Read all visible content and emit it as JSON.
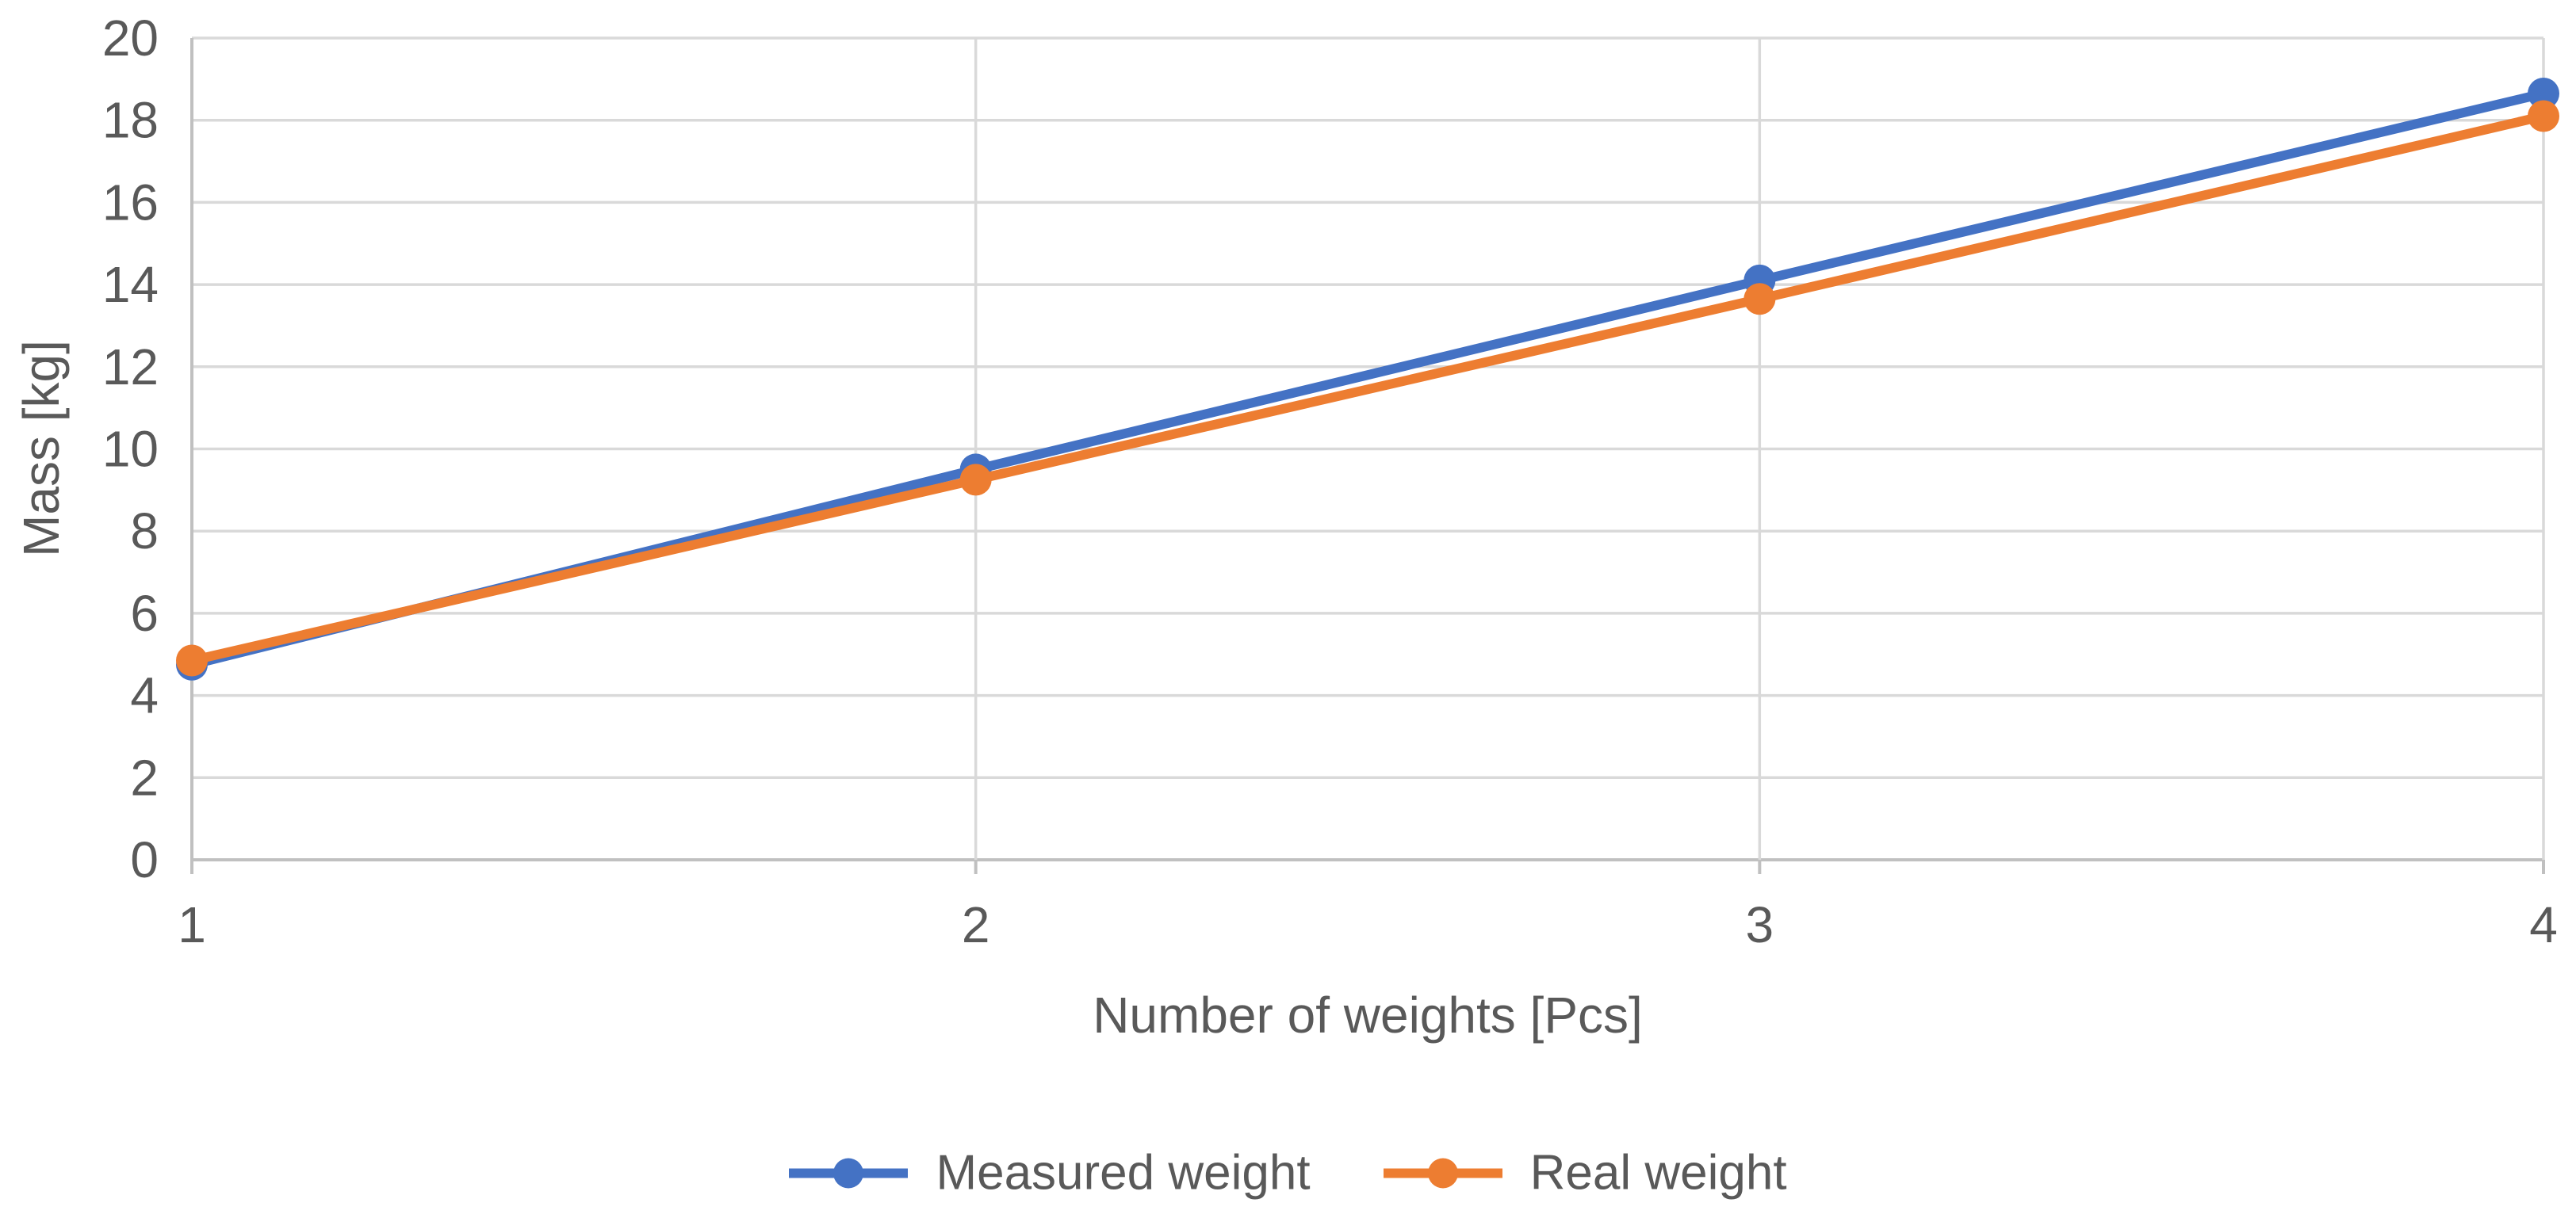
{
  "chart_data": {
    "type": "line",
    "title": "",
    "x": [
      1,
      2,
      3,
      4
    ],
    "x_tick_labels": [
      "1",
      "2",
      "3",
      "4"
    ],
    "y_tick_labels": [
      "0",
      "2",
      "4",
      "6",
      "8",
      "10",
      "12",
      "14",
      "16",
      "18",
      "20"
    ],
    "xlabel": "Number of weights [Pcs]",
    "ylabel": "Mass [kg]",
    "ylim": [
      0,
      20
    ],
    "ytick_step": 2,
    "xlim": [
      1,
      4
    ],
    "grid": true,
    "legend_position": "bottom-center",
    "marker": "circle",
    "series": [
      {
        "name": "Measured weight",
        "color": "#4472C4",
        "values": [
          4.75,
          9.5,
          14.1,
          18.65
        ]
      },
      {
        "name": "Real weight",
        "color": "#ED7D31",
        "values": [
          4.85,
          9.25,
          13.65,
          18.1
        ]
      }
    ],
    "styles": {
      "text_color": "#595959",
      "gridline_color": "#D9D9D9",
      "axis_color": "#C0C0C0",
      "background": "#FFFFFF"
    }
  }
}
